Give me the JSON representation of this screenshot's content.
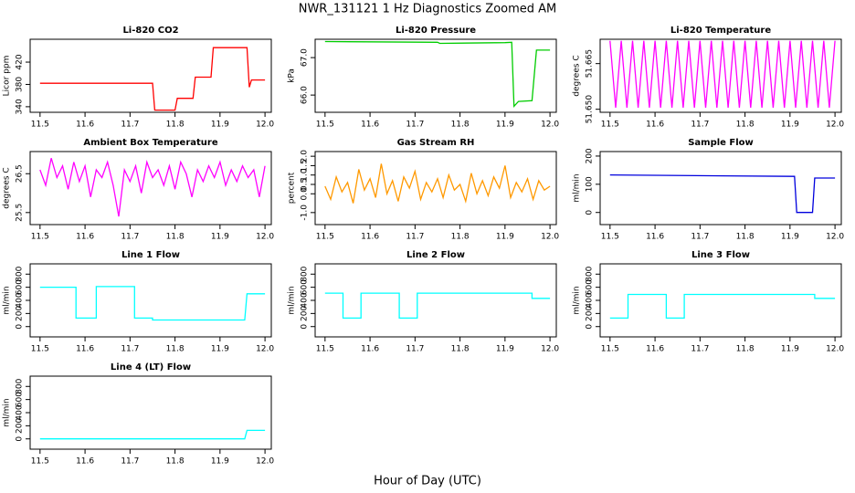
{
  "title": "NWR_131121  1 Hz Diagnostics Zoomed AM",
  "xlabel": "Hour of Day (UTC)",
  "chart_data": [
    {
      "type": "line",
      "title": "Li-820 CO2",
      "ylabel": "Licor ppm",
      "color": "#ff0000",
      "xlim": [
        11.478,
        12.014
      ],
      "xticks": [
        11.5,
        11.6,
        11.7,
        11.8,
        11.9,
        {
          "value": 12,
          "label": "12.0"
        }
      ],
      "ylim": [
        330,
        461
      ],
      "yticks": [
        340,
        380,
        420
      ],
      "x": [
        11.5,
        11.75,
        11.755,
        11.8,
        11.805,
        11.84,
        11.845,
        11.88,
        11.885,
        11.96,
        11.965,
        11.97,
        12.0
      ],
      "values": [
        382,
        382,
        334,
        334,
        355,
        355,
        393,
        393,
        446,
        446,
        375,
        388,
        388
      ]
    },
    {
      "type": "line",
      "title": "Li-820 Pressure",
      "ylabel": "kPa",
      "color": "#00cc00",
      "xlim": [
        11.478,
        12.014
      ],
      "xticks": [
        11.5,
        11.6,
        11.7,
        11.8,
        11.9,
        {
          "value": 12,
          "label": "12.0"
        }
      ],
      "ylim": [
        65.54,
        67.49
      ],
      "yticks": [
        {
          "value": 66,
          "label": "66.0"
        },
        {
          "value": 67,
          "label": "67.0"
        }
      ],
      "x": [
        11.5,
        11.75,
        11.755,
        11.9,
        11.915,
        11.92,
        11.93,
        11.96,
        11.97,
        12.0
      ],
      "values": [
        67.43,
        67.41,
        67.38,
        67.4,
        67.41,
        65.7,
        65.83,
        65.85,
        67.2,
        67.2
      ]
    },
    {
      "type": "line",
      "title": "Li-820 Temperature",
      "ylabel": "degrees C",
      "color": "#ff00ff",
      "xlim": [
        11.478,
        12.014
      ],
      "xticks": [
        11.5,
        11.6,
        11.7,
        11.8,
        11.9,
        {
          "value": 12,
          "label": "12.0"
        }
      ],
      "ylim": [
        51.649,
        51.673
      ],
      "yticks": [
        {
          "value": 51.65,
          "label": "51.650"
        },
        51.665
      ],
      "x": [
        11.5,
        11.5125,
        11.525,
        11.5375,
        11.55,
        11.5625,
        11.575,
        11.5875,
        11.6,
        11.6125,
        11.625,
        11.6375,
        11.65,
        11.6625,
        11.675,
        11.6875,
        11.7,
        11.7125,
        11.725,
        11.7375,
        11.75,
        11.7625,
        11.775,
        11.7875,
        11.8,
        11.8125,
        11.825,
        11.8375,
        11.85,
        11.8625,
        11.875,
        11.8875,
        11.9,
        11.9125,
        11.925,
        11.9375,
        11.95,
        11.9625,
        11.975,
        11.9875,
        12.0
      ],
      "values": [
        51.6725,
        51.6505,
        51.6725,
        51.6505,
        51.6725,
        51.6505,
        51.6725,
        51.6505,
        51.6725,
        51.6505,
        51.6725,
        51.6505,
        51.6725,
        51.6505,
        51.6725,
        51.6505,
        51.6725,
        51.6505,
        51.6725,
        51.6505,
        51.6725,
        51.6505,
        51.6725,
        51.6505,
        51.6725,
        51.6505,
        51.6725,
        51.6505,
        51.6725,
        51.6505,
        51.6725,
        51.6505,
        51.6725,
        51.6505,
        51.6725,
        51.6505,
        51.6725,
        51.6505,
        51.6725,
        51.6505,
        51.6725
      ]
    },
    {
      "type": "line",
      "title": "Ambient Box Temperature",
      "ylabel": "degrees C",
      "color": "#ff00ff",
      "xlim": [
        11.478,
        12.014
      ],
      "xticks": [
        11.5,
        11.6,
        11.7,
        11.8,
        11.9,
        {
          "value": 12,
          "label": "12.0"
        }
      ],
      "ylim": [
        25.19,
        27.07
      ],
      "yticks": [
        25.5,
        26.5
      ],
      "x": [
        11.5,
        11.5125,
        11.525,
        11.5375,
        11.55,
        11.5625,
        11.575,
        11.5875,
        11.6,
        11.6125,
        11.625,
        11.6375,
        11.65,
        11.6625,
        11.675,
        11.6875,
        11.7,
        11.7125,
        11.725,
        11.7375,
        11.75,
        11.7625,
        11.775,
        11.7875,
        11.8,
        11.8125,
        11.825,
        11.8375,
        11.85,
        11.8625,
        11.875,
        11.8875,
        11.9,
        11.9125,
        11.925,
        11.9375,
        11.95,
        11.9625,
        11.975,
        11.9875,
        12.0
      ],
      "values": [
        26.6,
        26.2,
        26.9,
        26.4,
        26.7,
        26.1,
        26.8,
        26.3,
        26.7,
        25.9,
        26.6,
        26.4,
        26.8,
        26.2,
        25.4,
        26.6,
        26.3,
        26.7,
        26.0,
        26.8,
        26.4,
        26.6,
        26.2,
        26.7,
        26.1,
        26.8,
        26.5,
        25.9,
        26.6,
        26.3,
        26.7,
        26.4,
        26.8,
        26.2,
        26.6,
        26.3,
        26.7,
        26.4,
        26.6,
        25.9,
        26.7
      ]
    },
    {
      "type": "line",
      "title": "Gas Stream RH",
      "ylabel": "percent",
      "color": "#ff9900",
      "xlim": [
        11.478,
        12.014
      ],
      "xticks": [
        11.5,
        11.6,
        11.7,
        11.8,
        11.9,
        {
          "value": 12,
          "label": "12.0"
        }
      ],
      "ylim": [
        -1.64,
        2.25
      ],
      "yticks": [
        {
          "value": -1,
          "label": "-1.0"
        },
        {
          "value": 0,
          "label": "0.0"
        },
        0.5,
        {
          "value": 1,
          "label": "1.0"
        },
        1.5,
        {
          "value": 2,
          "label": "2.0"
        }
      ],
      "x": [
        11.5,
        11.5125,
        11.525,
        11.5375,
        11.55,
        11.5625,
        11.575,
        11.5875,
        11.6,
        11.6125,
        11.625,
        11.6375,
        11.65,
        11.6625,
        11.675,
        11.6875,
        11.7,
        11.7125,
        11.725,
        11.7375,
        11.75,
        11.7625,
        11.775,
        11.7875,
        11.8,
        11.8125,
        11.825,
        11.8375,
        11.85,
        11.8625,
        11.875,
        11.8875,
        11.9,
        11.9125,
        11.925,
        11.9375,
        11.95,
        11.9625,
        11.975,
        11.9875,
        12.0
      ],
      "values": [
        0.4,
        -0.3,
        0.9,
        0.1,
        0.6,
        -0.5,
        1.3,
        0.2,
        0.8,
        -0.2,
        1.6,
        0.0,
        0.7,
        -0.4,
        0.9,
        0.3,
        1.2,
        -0.3,
        0.6,
        0.1,
        0.8,
        -0.2,
        1.0,
        0.2,
        0.5,
        -0.4,
        1.1,
        0.0,
        0.7,
        -0.1,
        0.9,
        0.3,
        1.5,
        -0.2,
        0.6,
        0.1,
        0.8,
        -0.3,
        0.7,
        0.2,
        0.4
      ]
    },
    {
      "type": "line",
      "title": "Sample Flow",
      "ylabel": "ml/min",
      "color": "#0000dd",
      "xlim": [
        11.478,
        12.014
      ],
      "xticks": [
        11.5,
        11.6,
        11.7,
        11.8,
        11.9,
        {
          "value": 12,
          "label": "12.0"
        }
      ],
      "ylim": [
        -43,
        216
      ],
      "yticks": [
        0,
        100,
        200
      ],
      "x": [
        11.5,
        11.75,
        11.91,
        11.915,
        11.95,
        11.955,
        12.0
      ],
      "values": [
        133,
        130,
        128,
        0,
        0,
        122,
        122
      ]
    },
    {
      "type": "line",
      "title": "Line 1 Flow",
      "ylabel": "ml/min",
      "color": "#00ffff",
      "xlim": [
        11.478,
        12.014
      ],
      "xticks": [
        11.5,
        11.6,
        11.7,
        11.8,
        11.9,
        {
          "value": 12,
          "label": "12.0"
        }
      ],
      "ylim": [
        -157,
        957
      ],
      "yticks": [
        0,
        200,
        400,
        600,
        800
      ],
      "x": [
        11.5,
        11.58,
        11.58,
        11.625,
        11.625,
        11.71,
        11.71,
        11.75,
        11.75,
        11.955,
        11.96,
        12.0
      ],
      "values": [
        600,
        600,
        130,
        130,
        610,
        610,
        130,
        130,
        100,
        100,
        500,
        500
      ]
    },
    {
      "type": "line",
      "title": "Line 2 Flow",
      "ylabel": "ml/min",
      "color": "#00ffff",
      "xlim": [
        11.478,
        12.014
      ],
      "xticks": [
        11.5,
        11.6,
        11.7,
        11.8,
        11.9,
        {
          "value": 12,
          "label": "12.0"
        }
      ],
      "ylim": [
        -157,
        957
      ],
      "yticks": [
        0,
        200,
        400,
        600,
        800
      ],
      "x": [
        11.5,
        11.54,
        11.54,
        11.58,
        11.58,
        11.665,
        11.665,
        11.705,
        11.705,
        11.96,
        11.96,
        12.0
      ],
      "values": [
        510,
        510,
        130,
        130,
        510,
        510,
        130,
        130,
        510,
        510,
        430,
        430
      ]
    },
    {
      "type": "line",
      "title": "Line 3 Flow",
      "ylabel": "ml/min",
      "color": "#00ffff",
      "xlim": [
        11.478,
        12.014
      ],
      "xticks": [
        11.5,
        11.6,
        11.7,
        11.8,
        11.9,
        {
          "value": 12,
          "label": "12.0"
        }
      ],
      "ylim": [
        -157,
        957
      ],
      "yticks": [
        0,
        200,
        400,
        600,
        800
      ],
      "x": [
        11.5,
        11.54,
        11.54,
        11.625,
        11.625,
        11.665,
        11.665,
        11.955,
        11.955,
        12.0
      ],
      "values": [
        130,
        130,
        490,
        490,
        130,
        130,
        490,
        490,
        430,
        430
      ]
    },
    {
      "type": "line",
      "title": "Line 4 (LT) Flow",
      "ylabel": "ml/min",
      "color": "#00ffff",
      "xlim": [
        11.478,
        12.014
      ],
      "xticks": [
        11.5,
        11.6,
        11.7,
        11.8,
        11.9,
        {
          "value": 12,
          "label": "12.0"
        }
      ],
      "ylim": [
        -157,
        957
      ],
      "yticks": [
        0,
        200,
        400,
        600,
        800
      ],
      "x": [
        11.5,
        11.955,
        11.96,
        12.0
      ],
      "values": [
        0,
        0,
        130,
        130
      ]
    }
  ]
}
